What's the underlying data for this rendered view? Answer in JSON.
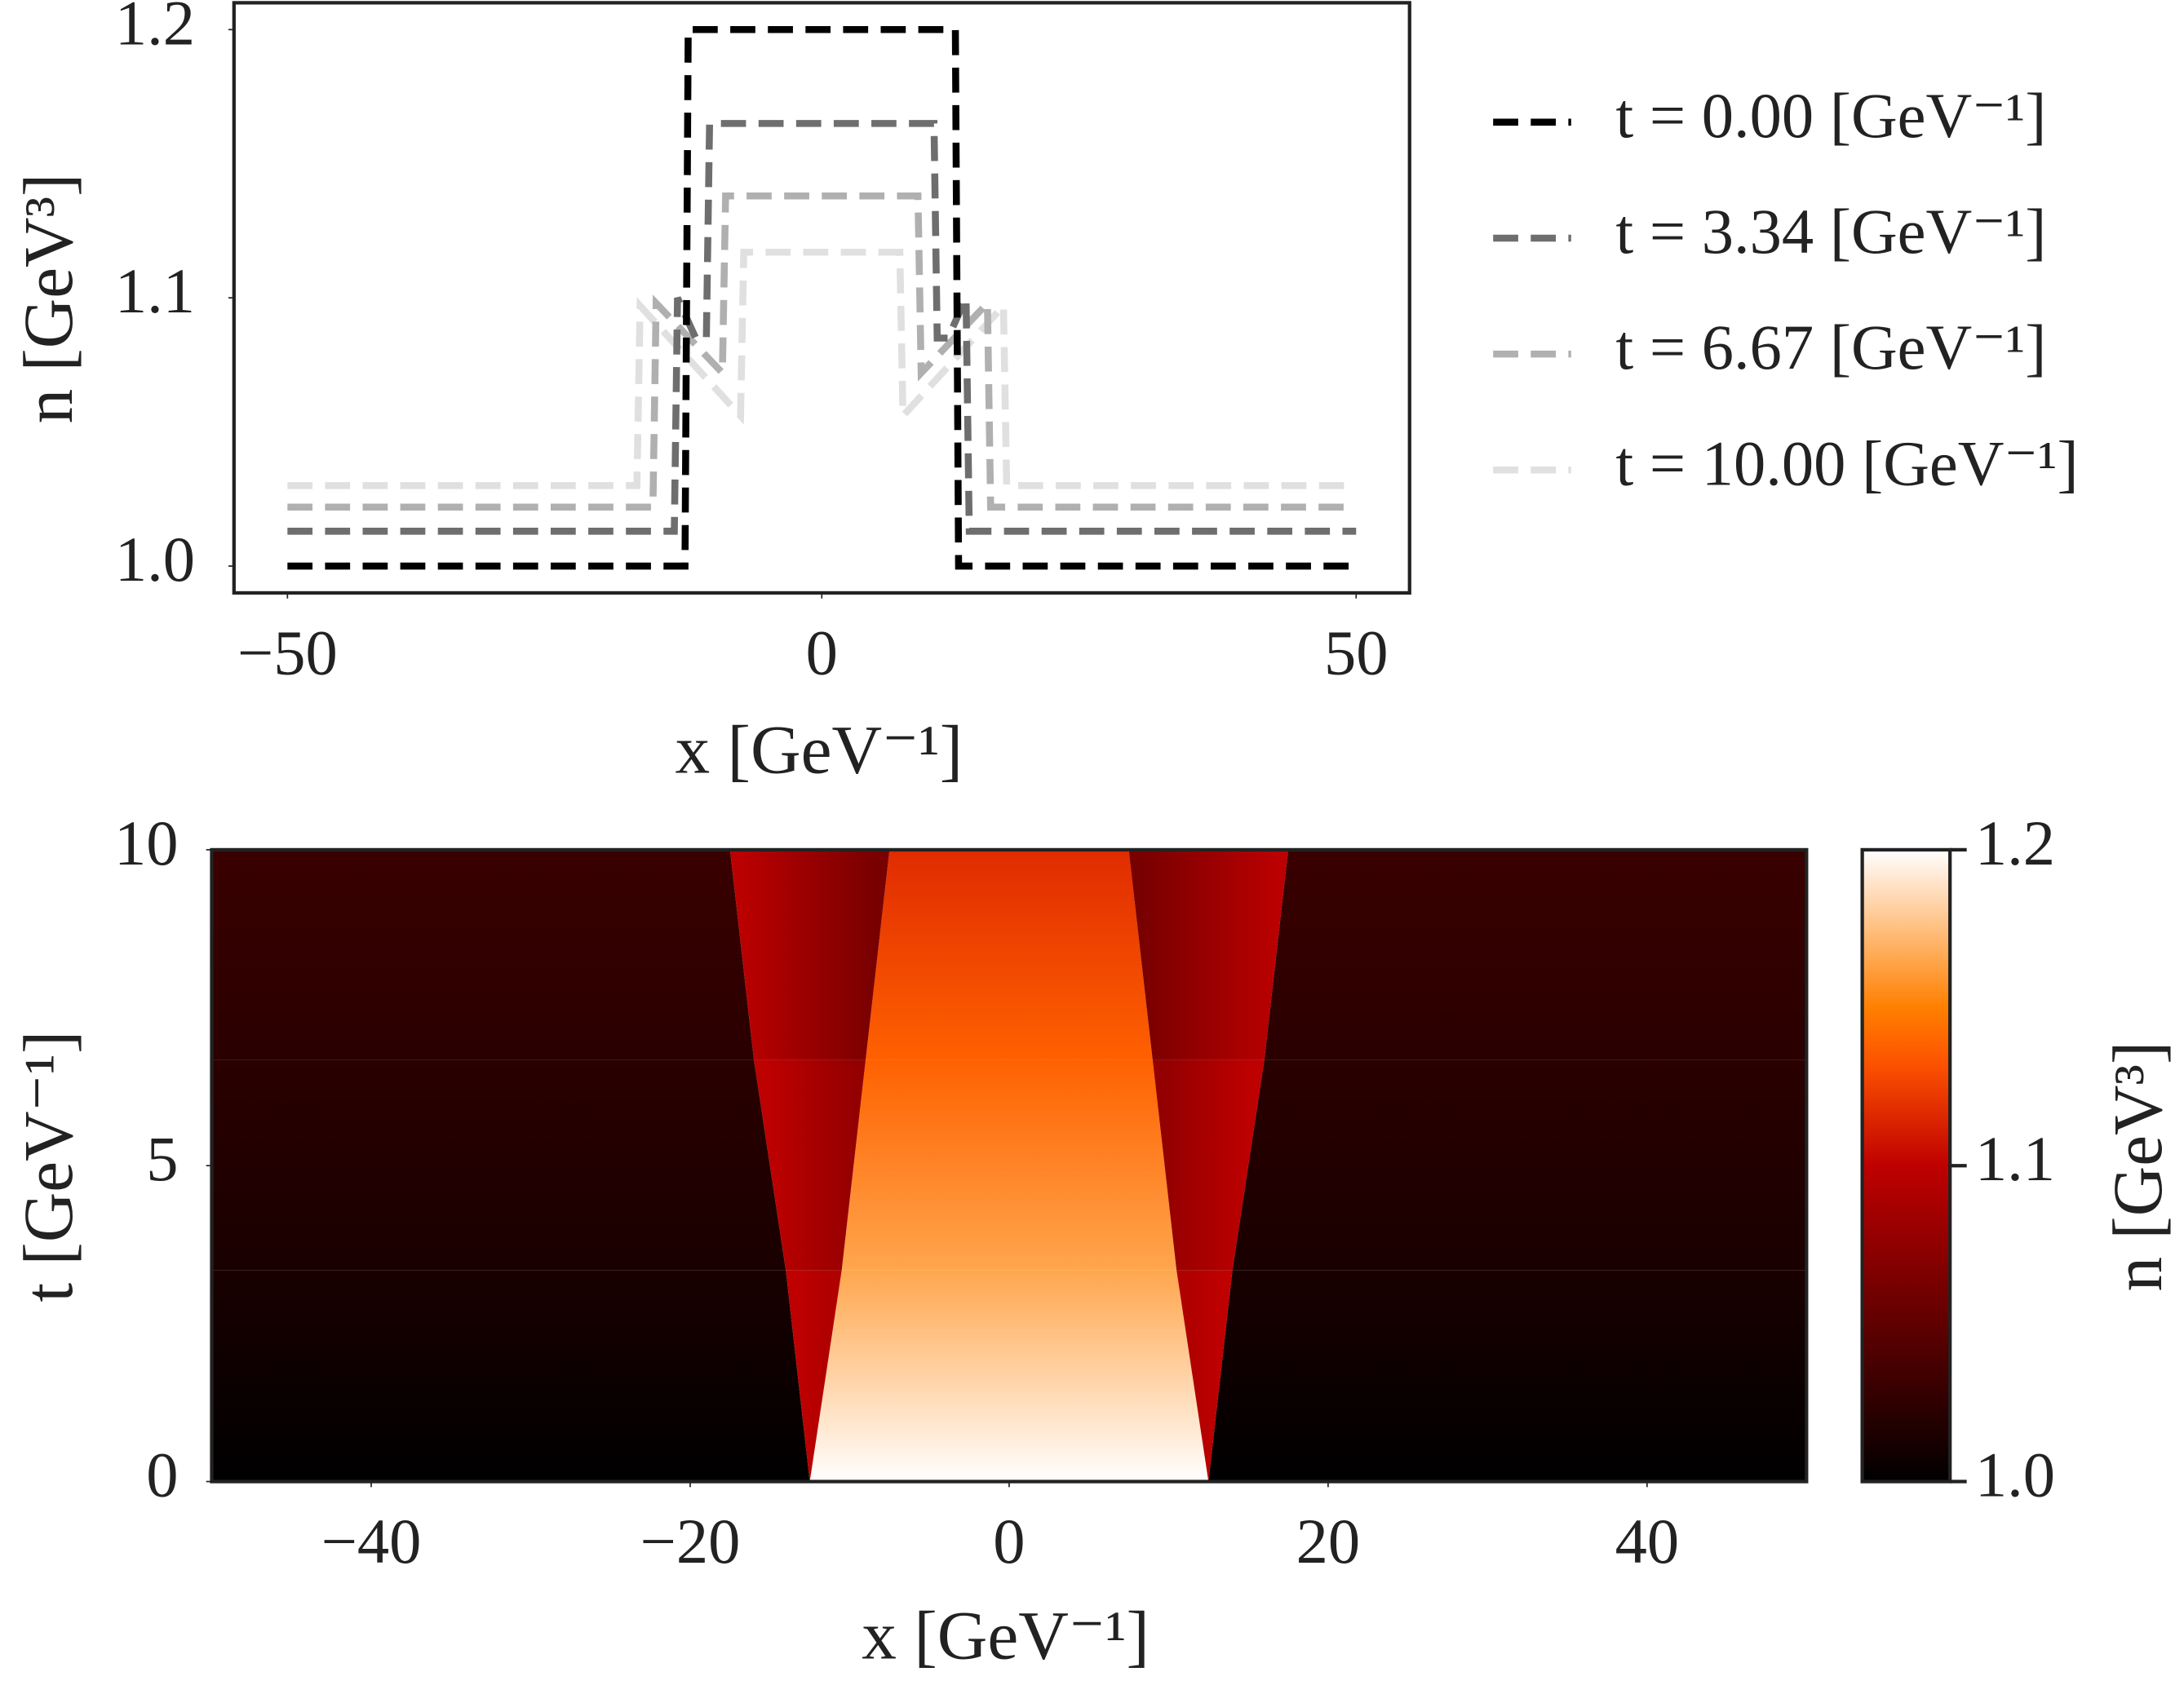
{
  "chart_data": [
    {
      "type": "line",
      "xlabel": "x [GeV⁻¹]",
      "ylabel": "n [GeV³]",
      "xlim": [
        -55,
        55
      ],
      "ylim": [
        0.99,
        1.21
      ],
      "xticks": [
        {
          "value": -50,
          "label": "−50"
        },
        0,
        50
      ],
      "yticks": [
        {
          "value": 1,
          "label": "1.0"
        },
        1.1,
        1.2
      ],
      "grid": false,
      "legend": "outside right",
      "series": [
        {
          "name": "t = 0.00 [GeV⁻¹]",
          "color": "#000000",
          "x": [
            -50,
            -12.8,
            -12.5,
            12.5,
            12.8,
            50
          ],
          "values": [
            1.0,
            1.0,
            1.2,
            1.2,
            1.0,
            1.0
          ]
        },
        {
          "name": "t = 3.34 [GeV⁻¹]",
          "color": "#6e6e6e",
          "x": [
            -50,
            -13.8,
            -13.5,
            -11.8,
            -10.8,
            -10.5,
            10.5,
            10.8,
            11.8,
            13.5,
            13.8,
            50
          ],
          "values": [
            1.013,
            1.013,
            1.1,
            1.085,
            1.085,
            1.165,
            1.165,
            1.085,
            1.085,
            1.1,
            1.013,
            1.013
          ]
        },
        {
          "name": "t = 6.67 [GeV⁻¹]",
          "color": "#b0b0b0",
          "x": [
            -50,
            -15.8,
            -15.5,
            -9.3,
            -9,
            9,
            9.3,
            15.5,
            15.8,
            50
          ],
          "values": [
            1.022,
            1.022,
            1.098,
            1.072,
            1.138,
            1.138,
            1.072,
            1.098,
            1.022,
            1.022
          ]
        },
        {
          "name": "t = 10.00 [GeV⁻¹]",
          "color": "#e0e0e0",
          "x": [
            -50,
            -17.3,
            -17,
            -7.6,
            -7.3,
            7.3,
            7.6,
            17,
            17.3,
            50
          ],
          "values": [
            1.03,
            1.03,
            1.097,
            1.056,
            1.117,
            1.117,
            1.056,
            1.097,
            1.03,
            1.03
          ]
        }
      ]
    },
    {
      "type": "heatmap",
      "xlabel": "x [GeV⁻¹]",
      "ylabel": "t [GeV⁻¹]",
      "clabel": "n [GeV³]",
      "xlim": [
        -50,
        50
      ],
      "ylim": [
        0,
        10
      ],
      "clim": [
        1.0,
        1.2
      ],
      "xticks": [
        {
          "value": -40,
          "label": "−40"
        },
        {
          "value": -20,
          "label": "−20"
        },
        0,
        20,
        40
      ],
      "yticks": [
        0,
        5,
        10
      ],
      "cticks": [
        {
          "value": 1,
          "label": "1.0"
        },
        1.1,
        1.2
      ],
      "colormap": "gist_heat",
      "t": [
        0,
        3.34,
        6.67,
        10
      ],
      "inner_edge": [
        12.5,
        10.5,
        9,
        7.5
      ],
      "outer_edge": [
        12.5,
        14,
        16,
        17.5
      ],
      "n_center": [
        1.2,
        1.165,
        1.138,
        1.117
      ],
      "n_side_inner": [
        1.1,
        1.085,
        1.07,
        1.056
      ],
      "n_side_outer": [
        1.1,
        1.1,
        1.098,
        1.097
      ],
      "n_outer": [
        1.0,
        1.013,
        1.022,
        1.03
      ]
    }
  ]
}
